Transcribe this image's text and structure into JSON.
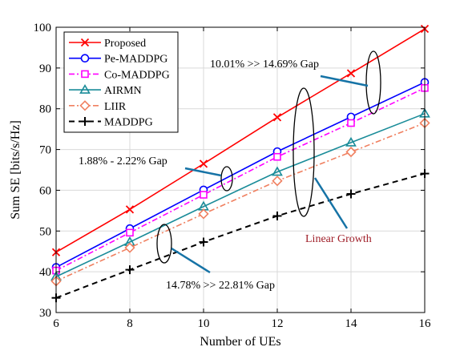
{
  "chart_data": {
    "type": "line",
    "xlabel": "Number of UEs",
    "ylabel": "Sum SE [bits/s/Hz]",
    "x": [
      6,
      8,
      10,
      12,
      14,
      16
    ],
    "xlim": [
      6,
      16
    ],
    "ylim": [
      30,
      100
    ],
    "xticks": [
      "6",
      "8",
      "10",
      "12",
      "14",
      "16"
    ],
    "yticks": [
      "30",
      "40",
      "50",
      "60",
      "70",
      "80",
      "90",
      "100"
    ],
    "grid": true,
    "legend_position": "top-left",
    "series": [
      {
        "name": "Proposed",
        "values": [
          44.8,
          55.3,
          66.5,
          77.9,
          88.7,
          99.6
        ],
        "color": "#ff0000",
        "marker": "x",
        "dash": "solid"
      },
      {
        "name": "Pe-MADDPG",
        "values": [
          41.1,
          50.6,
          60.1,
          69.5,
          78.0,
          86.5
        ],
        "color": "#0000ff",
        "marker": "circle",
        "dash": "solid"
      },
      {
        "name": "Co-MADDPG",
        "values": [
          40.3,
          49.6,
          58.9,
          68.2,
          76.5,
          85.1
        ],
        "color": "#ff00ff",
        "marker": "square",
        "dash": "dash-dot"
      },
      {
        "name": "AIRMN",
        "values": [
          38.8,
          47.3,
          56.0,
          64.5,
          71.7,
          78.8
        ],
        "color": "#1a8c99",
        "marker": "triangle",
        "dash": "solid"
      },
      {
        "name": "LIIR",
        "values": [
          37.7,
          45.9,
          54.2,
          62.3,
          69.4,
          76.5
        ],
        "color": "#f08060",
        "marker": "diamond",
        "dash": "dash-dot"
      },
      {
        "name": "MADDPG",
        "values": [
          33.6,
          40.5,
          47.3,
          53.7,
          59.1,
          64.1
        ],
        "color": "#000000",
        "marker": "plus",
        "dash": "dashed"
      }
    ],
    "annotations": [
      {
        "text": "10.01% >> 14.69% Gap",
        "color": "#000000"
      },
      {
        "text": "1.88% - 2.22% Gap",
        "color": "#000000"
      },
      {
        "text": "Linear Growth",
        "color": "#a0202a"
      },
      {
        "text": "14.78% >> 22.81% Gap",
        "color": "#000000"
      }
    ]
  }
}
